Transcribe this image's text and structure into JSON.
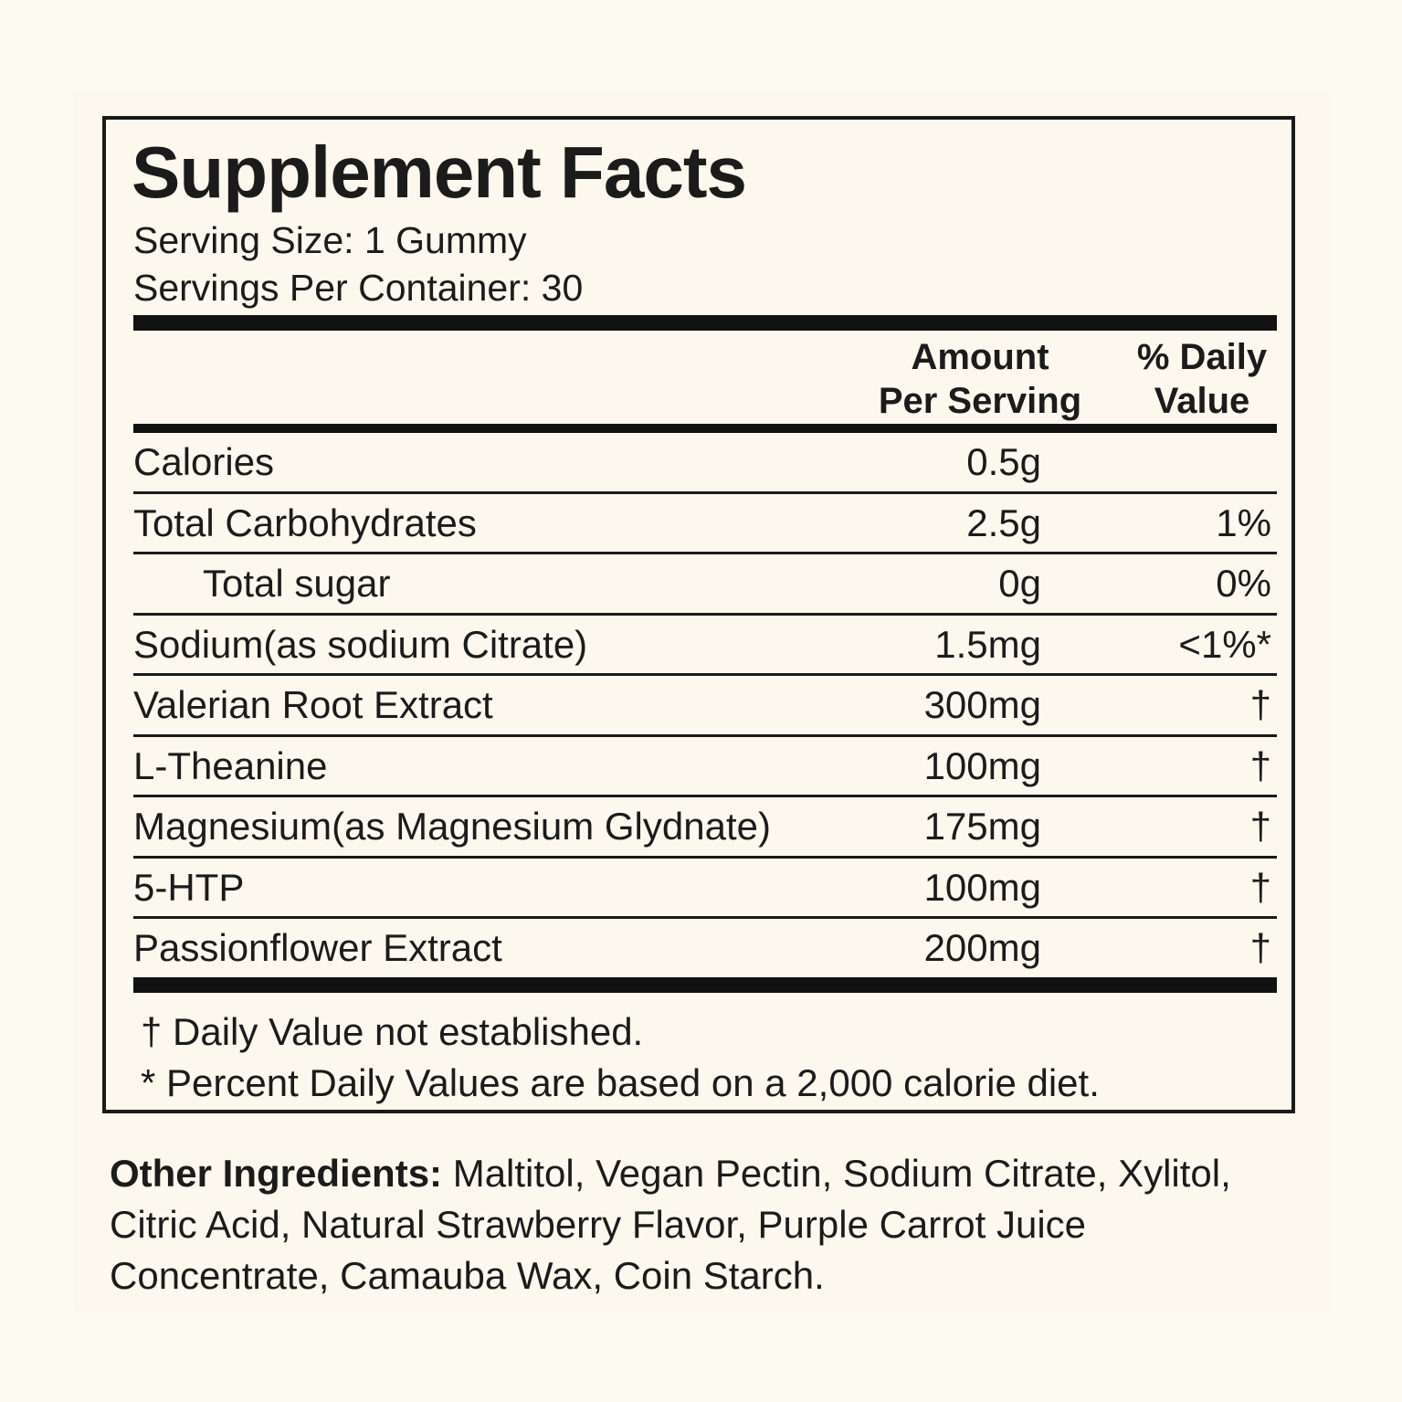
{
  "title": "Supplement Facts",
  "serving_size": "Serving Size: 1 Gummy",
  "servings_per_container": "Servings Per Container: 30",
  "columns": {
    "amount": "Amount\nPer Serving",
    "daily_value": "% Daily\nValue"
  },
  "rows": [
    {
      "name": "Calories",
      "amount": "0.5g",
      "dv": "",
      "indent": false
    },
    {
      "name": "Total Carbohydrates",
      "amount": "2.5g",
      "dv": "1%",
      "indent": false
    },
    {
      "name": "Total sugar",
      "amount": "0g",
      "dv": "0%",
      "indent": true
    },
    {
      "name": "Sodium(as sodium Citrate)",
      "amount": "1.5mg",
      "dv": "<1%*",
      "indent": false
    },
    {
      "name": "Valerian Root Extract",
      "amount": "300mg",
      "dv": "†",
      "indent": false
    },
    {
      "name": "L-Theanine",
      "amount": "100mg",
      "dv": "†",
      "indent": false
    },
    {
      "name": "Magnesium(as Magnesium Glydnate)",
      "amount": "175mg",
      "dv": "†",
      "indent": false
    },
    {
      "name": "5-HTP",
      "amount": "100mg",
      "dv": "†",
      "indent": false
    },
    {
      "name": "Passionflower Extract",
      "amount": "200mg",
      "dv": "†",
      "indent": false
    }
  ],
  "footnotes": {
    "dagger": "† Daily Value not established.",
    "percent": "* Percent Daily Values are based on a 2,000 calorie diet."
  },
  "other_ingredients": {
    "label": "Other Ingredients:",
    "text": " Maltitol, Vegan Pectin, Sodium Citrate, Xylitol, Citric Acid, Natural Strawberry Flavor, Purple Carrot Juice Concentrate, Camauba Wax, Coin Starch."
  },
  "colors": {
    "background": "#fdfbf1",
    "panel": "#fdf8ee",
    "ink": "#1b1b1b"
  }
}
